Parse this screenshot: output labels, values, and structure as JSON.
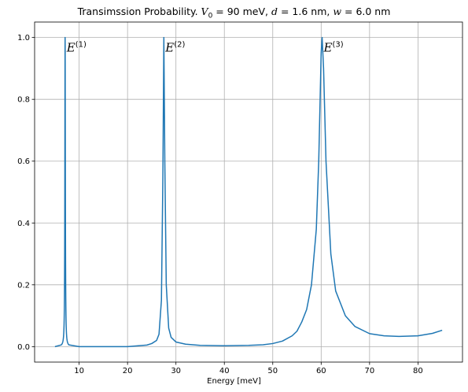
{
  "chart_data": {
    "type": "line",
    "title": {
      "prefix": "Transimssion Probability. ",
      "v_symbol": "V",
      "v_subscript": "0",
      "v_value": " = 90 meV, ",
      "d_symbol": "d",
      "d_value": " = 1.6 nm, ",
      "w_symbol": "w",
      "w_value": " = 6.0 nm"
    },
    "xlabel": "Energy [meV]",
    "ylabel": "",
    "xlim": [
      0.8,
      89.2
    ],
    "ylim": [
      -0.05,
      1.05
    ],
    "xticks": [
      10,
      20,
      30,
      40,
      50,
      60,
      70,
      80
    ],
    "yticks": [
      0.0,
      0.2,
      0.4,
      0.6,
      0.8,
      1.0
    ],
    "ytick_labels": [
      "0.0",
      "0.2",
      "0.4",
      "0.6",
      "0.8",
      "1.0"
    ],
    "grid": true,
    "line_color": "#1f77b4",
    "x_range": [
      5,
      85
    ],
    "resonances": [
      {
        "label_base": "E",
        "label_sup": "(1)",
        "x": 7.1,
        "y": 1.0,
        "half_width": 0.06
      },
      {
        "label_base": "E",
        "label_sup": "(2)",
        "x": 27.5,
        "y": 1.0,
        "half_width": 0.3
      },
      {
        "label_base": "E",
        "label_sup": "(3)",
        "x": 60.2,
        "y": 1.0,
        "half_width": 1.5
      }
    ],
    "series": [
      {
        "x": [
          5,
          10,
          15,
          20,
          24,
          25,
          26,
          26.5,
          27,
          27.3,
          27.5,
          27.7,
          28,
          28.5,
          29,
          30,
          32,
          35,
          40,
          45,
          48,
          50,
          52,
          54,
          55,
          56,
          57,
          58,
          59,
          59.5,
          60,
          60.2,
          60.5,
          61,
          62,
          63,
          65,
          67,
          70,
          73,
          76,
          80,
          83,
          85
        ],
        "y": [
          0.0,
          0.0,
          0.0,
          0.0,
          0.005,
          0.01,
          0.02,
          0.04,
          0.15,
          0.55,
          1.0,
          0.6,
          0.2,
          0.06,
          0.03,
          0.015,
          0.008,
          0.004,
          0.003,
          0.004,
          0.006,
          0.01,
          0.018,
          0.035,
          0.05,
          0.08,
          0.12,
          0.2,
          0.38,
          0.6,
          0.95,
          1.0,
          0.9,
          0.6,
          0.3,
          0.18,
          0.1,
          0.065,
          0.042,
          0.035,
          0.033,
          0.035,
          0.043,
          0.053
        ]
      }
    ]
  }
}
